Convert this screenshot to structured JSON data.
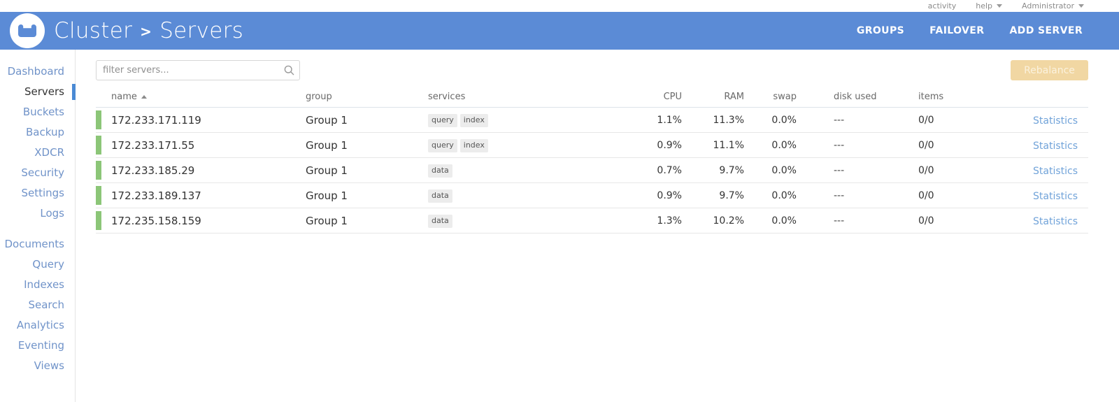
{
  "topbar": {
    "activity_label": "activity",
    "help_label": "help",
    "user_label": "Administrator"
  },
  "header": {
    "breadcrumb_root": "Cluster",
    "breadcrumb_separator": ">",
    "breadcrumb_current": "Servers",
    "actions": [
      {
        "label": "GROUPS"
      },
      {
        "label": "FAILOVER"
      },
      {
        "label": "ADD SERVER"
      }
    ]
  },
  "sidebar": {
    "groups": [
      {
        "items": [
          {
            "label": "Dashboard",
            "active": false
          },
          {
            "label": "Servers",
            "active": true
          },
          {
            "label": "Buckets",
            "active": false
          },
          {
            "label": "Backup",
            "active": false
          },
          {
            "label": "XDCR",
            "active": false
          },
          {
            "label": "Security",
            "active": false
          },
          {
            "label": "Settings",
            "active": false
          },
          {
            "label": "Logs",
            "active": false
          }
        ]
      },
      {
        "items": [
          {
            "label": "Documents",
            "active": false
          },
          {
            "label": "Query",
            "active": false
          },
          {
            "label": "Indexes",
            "active": false
          },
          {
            "label": "Search",
            "active": false
          },
          {
            "label": "Analytics",
            "active": false
          },
          {
            "label": "Eventing",
            "active": false
          },
          {
            "label": "Views",
            "active": false
          }
        ]
      }
    ]
  },
  "toolbar": {
    "filter_placeholder": "filter servers...",
    "rebalance_label": "Rebalance",
    "rebalance_enabled": false
  },
  "table": {
    "columns": [
      {
        "label": "name",
        "sorted": "asc"
      },
      {
        "label": "group"
      },
      {
        "label": "services"
      },
      {
        "label": "CPU"
      },
      {
        "label": "RAM"
      },
      {
        "label": "swap"
      },
      {
        "label": "disk used"
      },
      {
        "label": "items"
      },
      {
        "label": ""
      }
    ],
    "rows": [
      {
        "name": "172.233.171.119",
        "group": "Group 1",
        "services": [
          "query",
          "index"
        ],
        "cpu": "1.1%",
        "ram": "11.3%",
        "swap": "0.0%",
        "disk_used": "---",
        "items": "0/0",
        "statistics_label": "Statistics",
        "health": "healthy"
      },
      {
        "name": "172.233.171.55",
        "group": "Group 1",
        "services": [
          "query",
          "index"
        ],
        "cpu": "0.9%",
        "ram": "11.1%",
        "swap": "0.0%",
        "disk_used": "---",
        "items": "0/0",
        "statistics_label": "Statistics",
        "health": "healthy"
      },
      {
        "name": "172.233.185.29",
        "group": "Group 1",
        "services": [
          "data"
        ],
        "cpu": "0.7%",
        "ram": "9.7%",
        "swap": "0.0%",
        "disk_used": "---",
        "items": "0/0",
        "statistics_label": "Statistics",
        "health": "healthy"
      },
      {
        "name": "172.233.189.137",
        "group": "Group 1",
        "services": [
          "data"
        ],
        "cpu": "0.9%",
        "ram": "9.7%",
        "swap": "0.0%",
        "disk_used": "---",
        "items": "0/0",
        "statistics_label": "Statistics",
        "health": "healthy"
      },
      {
        "name": "172.235.158.159",
        "group": "Group 1",
        "services": [
          "data"
        ],
        "cpu": "1.3%",
        "ram": "10.2%",
        "swap": "0.0%",
        "disk_used": "---",
        "items": "0/0",
        "statistics_label": "Statistics",
        "health": "healthy"
      }
    ]
  },
  "colors": {
    "header_blue": "#5b8bd6",
    "sidebar_link_blue": "#7093c9",
    "active_indicator_blue": "#4a8ad4",
    "healthy_green": "#8cc678",
    "rebalance_disabled_bg": "#f1d7a3",
    "statistics_link_blue": "#71a3d9"
  }
}
